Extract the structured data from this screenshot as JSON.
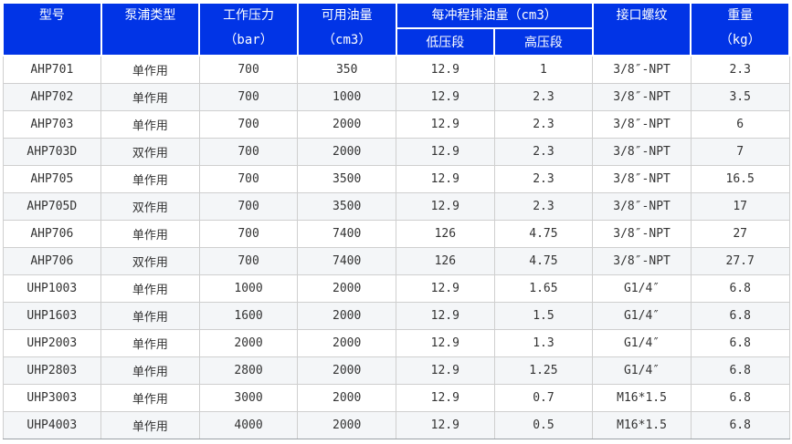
{
  "colors": {
    "header_bg": "#0134e6",
    "header_text": "#ffffff",
    "body_text": "#333333",
    "border": "#cfcfcf",
    "row_alt_bg": "#f4f6f8"
  },
  "table": {
    "headers": {
      "model": "型号",
      "pump_type": "泵浦类型",
      "working_pressure": {
        "line1": "工作压力",
        "line2": "（bar）"
      },
      "usable_oil": {
        "line1": "可用油量",
        "line2": "（cm3）"
      },
      "oil_per_stroke": "每冲程排油量（cm3）",
      "low_pressure": "低压段",
      "high_pressure": "高压段",
      "port_thread": "接口螺纹",
      "weight": {
        "line1": "重量",
        "line2": "（kg）"
      }
    },
    "rows": [
      [
        "AHP701",
        "单作用",
        "700",
        "350",
        "12.9",
        "1",
        "3/8″-NPT",
        "2.3"
      ],
      [
        "AHP702",
        "单作用",
        "700",
        "1000",
        "12.9",
        "2.3",
        "3/8″-NPT",
        "3.5"
      ],
      [
        "AHP703",
        "单作用",
        "700",
        "2000",
        "12.9",
        "2.3",
        "3/8″-NPT",
        "6"
      ],
      [
        "AHP703D",
        "双作用",
        "700",
        "2000",
        "12.9",
        "2.3",
        "3/8″-NPT",
        "7"
      ],
      [
        "AHP705",
        "单作用",
        "700",
        "3500",
        "12.9",
        "2.3",
        "3/8″-NPT",
        "16.5"
      ],
      [
        "AHP705D",
        "双作用",
        "700",
        "3500",
        "12.9",
        "2.3",
        "3/8″-NPT",
        "17"
      ],
      [
        "AHP706",
        "单作用",
        "700",
        "7400",
        "126",
        "4.75",
        "3/8″-NPT",
        "27"
      ],
      [
        "AHP706",
        "双作用",
        "700",
        "7400",
        "126",
        "4.75",
        "3/8″-NPT",
        "27.7"
      ],
      [
        "UHP1003",
        "单作用",
        "1000",
        "2000",
        "12.9",
        "1.65",
        "G1/4″",
        "6.8"
      ],
      [
        "UHP1603",
        "单作用",
        "1600",
        "2000",
        "12.9",
        "1.5",
        "G1/4″",
        "6.8"
      ],
      [
        "UHP2003",
        "单作用",
        "2000",
        "2000",
        "12.9",
        "1.3",
        "G1/4″",
        "6.8"
      ],
      [
        "UHP2803",
        "单作用",
        "2800",
        "2000",
        "12.9",
        "1.25",
        "G1/4″",
        "6.8"
      ],
      [
        "UHP3003",
        "单作用",
        "3000",
        "2000",
        "12.9",
        "0.7",
        "M16*1.5",
        "6.8"
      ],
      [
        "UHP4003",
        "单作用",
        "4000",
        "2000",
        "12.9",
        "0.5",
        "M16*1.5",
        "6.8"
      ]
    ]
  }
}
